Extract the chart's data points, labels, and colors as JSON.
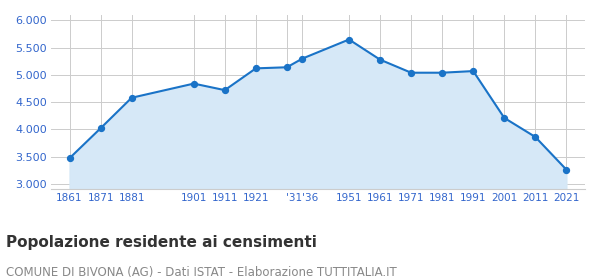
{
  "years": [
    1861,
    1871,
    1881,
    1901,
    1911,
    1921,
    1931,
    1936,
    1951,
    1961,
    1971,
    1981,
    1991,
    2001,
    2011,
    2021
  ],
  "values": [
    3470,
    4020,
    4580,
    4840,
    4720,
    5120,
    5140,
    5300,
    5650,
    5280,
    5040,
    5040,
    5070,
    4210,
    3860,
    3260
  ],
  "tick_labels": [
    "1861",
    "1871",
    "1881",
    "",
    "1901",
    "1911",
    "1921",
    "'31'36",
    "",
    "1951",
    "1961",
    "1971",
    "1981",
    "1991",
    "2001",
    "2011",
    "2021"
  ],
  "ylim": [
    2900,
    6100
  ],
  "yticks": [
    3000,
    3500,
    4000,
    4500,
    5000,
    5500,
    6000
  ],
  "line_color": "#1a73c7",
  "fill_color": "#d6e8f7",
  "marker_color": "#1a73c7",
  "bg_color": "#ffffff",
  "grid_color": "#cccccc",
  "title": "Popolazione residente ai censimenti",
  "subtitle": "COMUNE DI BIVONA (AG) - Dati ISTAT - Elaborazione TUTTITALIA.IT",
  "title_color": "#333333",
  "subtitle_color": "#888888",
  "axis_label_color": "#3366cc",
  "title_fontsize": 11,
  "subtitle_fontsize": 8.5
}
